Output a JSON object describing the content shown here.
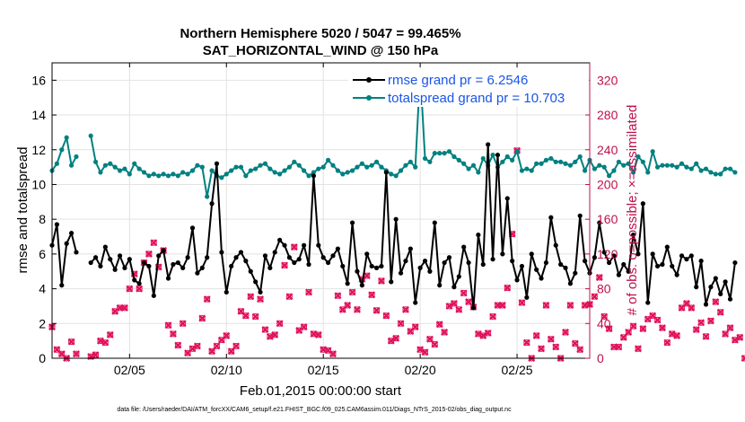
{
  "chart_data": {
    "type": "line",
    "title_line1": "Northern Hemisphere 5020 / 5047 = 99.465%",
    "title_line2": "SAT_HORIZONTAL_WIND @ 150 hPa",
    "xlabel": "Feb.01,2015 00:00:00 start",
    "ylabel_left": "rmse and totalspread",
    "ylabel_right": "# of obs: o=possible; ×=assimilated",
    "footer": "data file: /Users/raeder/DAI/ATM_forcXX/CAM6_setup/f.e21.FHIST_BGC.f09_025.CAM6assim.011/Diags_NTrS_2015-02/obs_diag_output.nc",
    "xlim": [
      1.0,
      28.75
    ],
    "ylim_left": [
      0,
      17
    ],
    "ylim_right": [
      0,
      340
    ],
    "x_ticks": [
      {
        "value": 5,
        "label": "02/05"
      },
      {
        "value": 10,
        "label": "02/10"
      },
      {
        "value": 15,
        "label": "02/15"
      },
      {
        "value": 20,
        "label": "02/20"
      },
      {
        "value": 25,
        "label": "02/25"
      }
    ],
    "y_left_ticks": [
      0,
      2,
      4,
      6,
      8,
      10,
      12,
      14,
      16
    ],
    "y_right_ticks": [
      0,
      40,
      80,
      120,
      160,
      200,
      240,
      280,
      320
    ],
    "colors": {
      "rmse": "#000000",
      "spread": "#008080",
      "obs": "#e0105a",
      "right_axis": "#c0104a",
      "legend_text": "#1a55e6"
    },
    "x_start": 1.0,
    "x_step": 0.25,
    "series": [
      {
        "name": "rmse grand pr = 6.2546",
        "axis": "left",
        "values": [
          6.5,
          7.7,
          4.2,
          6.6,
          7.2,
          6.1,
          null,
          null,
          5.5,
          5.8,
          5.3,
          6.4,
          5.7,
          5.1,
          5.9,
          5.2,
          5.7,
          4.5,
          4.3,
          5.5,
          5.3,
          3.6,
          5.9,
          6.2,
          4.6,
          5.4,
          5.5,
          5.2,
          5.8,
          7.5,
          4.9,
          5.2,
          5.8,
          8.9,
          11.2,
          6.1,
          3.8,
          5.3,
          5.8,
          6.1,
          5.6,
          5.0,
          4.4,
          3.8,
          5.9,
          5.2,
          6.1,
          6.8,
          6.5,
          5.8,
          5.5,
          5.7,
          6.5,
          5.4,
          10.5,
          6.5,
          5.8,
          5.5,
          5.9,
          6.3,
          5.3,
          4.3,
          7.8,
          5.0,
          4.2,
          6.0,
          5.3,
          5.2,
          5.3,
          10.7,
          4.4,
          8.0,
          4.9,
          5.6,
          6.3,
          3.2,
          5.2,
          5.6,
          5.0,
          7.8,
          4.2,
          5.5,
          5.8,
          4.1,
          4.7,
          6.4,
          5.5,
          2.9,
          7.1,
          5.4,
          12.3,
          5.7,
          11.7,
          6.0,
          9.2,
          5.6,
          4.5,
          5.3,
          3.5,
          6.0,
          5.1,
          4.6,
          5.5,
          8.1,
          6.5,
          5.4,
          5.2,
          4.3,
          4.9,
          8.2,
          5.6,
          4.9,
          5.8,
          7.8,
          6.1,
          5.5,
          5.9,
          4.8,
          5.4,
          5.0,
          7.1,
          6.0,
          8.9,
          3.2,
          6.0,
          5.3,
          5.4,
          6.4,
          5.3,
          4.8,
          5.9,
          5.7,
          5.9,
          4.1,
          5.6,
          3.1,
          4.1,
          4.6,
          3.7,
          4.4,
          3.4,
          5.5
        ]
      },
      {
        "name": "totalspread grand pr = 10.703",
        "axis": "left",
        "values": [
          10.8,
          11.2,
          12.0,
          12.7,
          11.1,
          11.6,
          null,
          null,
          12.8,
          11.3,
          10.7,
          11.1,
          11.2,
          11.0,
          10.8,
          10.9,
          10.6,
          11.2,
          10.9,
          10.7,
          10.5,
          10.6,
          10.5,
          10.6,
          10.5,
          10.6,
          10.5,
          10.7,
          10.6,
          10.8,
          11.1,
          11.0,
          9.3,
          10.8,
          10.5,
          10.4,
          10.6,
          10.8,
          11.0,
          11.0,
          10.5,
          10.8,
          10.9,
          11.1,
          11.2,
          10.9,
          10.7,
          10.6,
          10.8,
          11.0,
          11.3,
          11.1,
          10.8,
          10.5,
          10.7,
          10.9,
          11.0,
          11.4,
          11.1,
          10.8,
          10.6,
          10.7,
          10.8,
          11.0,
          11.2,
          11.0,
          11.1,
          11.3,
          11.0,
          10.8,
          10.6,
          10.5,
          10.8,
          11.1,
          11.3,
          11.0,
          16.5,
          11.5,
          11.3,
          11.8,
          11.8,
          11.8,
          11.9,
          11.6,
          11.4,
          11.2,
          10.9,
          11.1,
          10.7,
          11.5,
          11.1,
          11.7,
          11.0,
          11.3,
          11.6,
          11.4,
          11.9,
          10.8,
          10.9,
          10.8,
          11.2,
          11.2,
          11.4,
          11.5,
          11.3,
          11.3,
          11.2,
          11.1,
          11.3,
          11.6,
          10.8,
          11.4,
          10.9,
          11.1,
          11.0,
          10.5,
          10.8,
          11.3,
          11.1,
          11.2,
          10.7,
          11.6,
          11.3,
          10.7,
          11.9,
          11.0,
          11.1,
          11.1,
          11.1,
          11.0,
          11.2,
          11.0,
          10.9,
          11.2,
          10.8,
          10.9,
          10.7,
          10.6,
          10.6,
          10.9,
          10.9,
          10.7
        ]
      },
      {
        "name": "obs assimilated",
        "axis": "right",
        "values": [
          36,
          10,
          5,
          0,
          19,
          5,
          null,
          null,
          2,
          4,
          20,
          18,
          27,
          54,
          58,
          58,
          80,
          97,
          80,
          110,
          120,
          133,
          105,
          124,
          38,
          28,
          15,
          40,
          6,
          11,
          14,
          46,
          68,
          8,
          14,
          21,
          26,
          8,
          14,
          54,
          49,
          71,
          48,
          68,
          33,
          25,
          27,
          40,
          107,
          71,
          128,
          32,
          36,
          76,
          28,
          27,
          10,
          9,
          5,
          72,
          56,
          61,
          76,
          56,
          91,
          95,
          73,
          55,
          89,
          49,
          20,
          23,
          40,
          56,
          31,
          36,
          10,
          7,
          22,
          16,
          39,
          30,
          60,
          63,
          56,
          75,
          65,
          59,
          28,
          26,
          29,
          48,
          61,
          61,
          81,
          143,
          239,
          64,
          18,
          0,
          26,
          11,
          61,
          22,
          13,
          0,
          30,
          61,
          17,
          10,
          61,
          62,
          71,
          93,
          48,
          34,
          13,
          13,
          24,
          30,
          37,
          11,
          34,
          45,
          49,
          44,
          35,
          18,
          28,
          26,
          58,
          63,
          58,
          33,
          41,
          25,
          43,
          65,
          53,
          28,
          35,
          21,
          24,
          0
        ]
      },
      {
        "name": "obs possible",
        "axis": "right",
        "values": [
          36,
          10,
          5,
          0,
          19,
          5,
          null,
          null,
          2,
          4,
          20,
          18,
          27,
          54,
          58,
          58,
          80,
          97,
          80,
          110,
          120,
          133,
          105,
          124,
          38,
          28,
          15,
          40,
          6,
          11,
          14,
          46,
          68,
          8,
          14,
          21,
          26,
          8,
          14,
          54,
          49,
          71,
          48,
          68,
          33,
          25,
          27,
          40,
          107,
          71,
          128,
          32,
          36,
          76,
          28,
          27,
          10,
          9,
          5,
          72,
          56,
          61,
          76,
          56,
          91,
          95,
          73,
          55,
          89,
          49,
          20,
          23,
          40,
          56,
          31,
          36,
          10,
          7,
          22,
          16,
          39,
          30,
          60,
          63,
          56,
          75,
          65,
          59,
          28,
          26,
          29,
          48,
          61,
          61,
          81,
          143,
          239,
          64,
          18,
          0,
          26,
          11,
          61,
          22,
          13,
          0,
          30,
          61,
          17,
          10,
          61,
          62,
          71,
          93,
          48,
          34,
          13,
          13,
          24,
          30,
          37,
          11,
          34,
          45,
          49,
          44,
          35,
          18,
          28,
          26,
          58,
          63,
          58,
          33,
          41,
          25,
          43,
          65,
          53,
          28,
          35,
          21,
          24,
          0
        ]
      }
    ],
    "legend": {
      "position": "top-right",
      "entries": [
        {
          "label": "rmse grand pr = 6.2546",
          "series": 0
        },
        {
          "label": "totalspread grand pr = 10.703",
          "series": 1
        }
      ]
    }
  }
}
